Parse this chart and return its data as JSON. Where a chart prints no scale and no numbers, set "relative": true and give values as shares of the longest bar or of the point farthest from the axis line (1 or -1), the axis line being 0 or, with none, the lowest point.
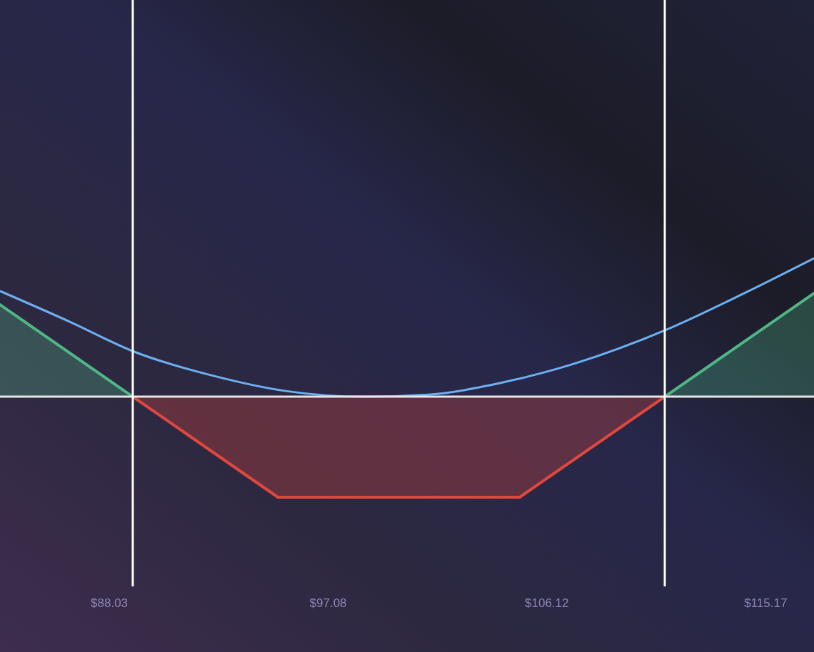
{
  "chart_data": {
    "type": "area",
    "relative": true,
    "xlim": [
      83.51,
      117.17
    ],
    "xticks": [
      {
        "value": 88.03,
        "label": "$88.03"
      },
      {
        "value": 97.08,
        "label": "$97.08"
      },
      {
        "value": 106.12,
        "label": "$106.12"
      },
      {
        "value": 115.17,
        "label": "$115.17"
      }
    ],
    "series": [
      {
        "color": "#4fb783",
        "x": [
          83.51,
          89,
          95,
          105,
          111,
          117.17
        ],
        "values": [
          0.665,
          0,
          null,
          null,
          0,
          0.747
        ]
      },
      {
        "color": "#e0483e",
        "x": [
          89,
          95,
          105,
          111
        ],
        "values": [
          0,
          -0.726,
          -0.726,
          0
        ]
      },
      {
        "type": "line",
        "color": "#6cb0f2",
        "x": [
          83.51,
          86.46,
          89,
          92.37,
          95.32,
          98.57,
          101.22,
          104.18,
          107.13,
          111,
          114.22,
          117.17
        ],
        "values": [
          0.763,
          0.536,
          0.329,
          0.149,
          0.041,
          0,
          0.015,
          0.098,
          0.232,
          0.479,
          0.742,
          1
        ]
      }
    ],
    "ref_lines": [
      {
        "axis": "x",
        "value": 89,
        "color": "#ffffff"
      },
      {
        "axis": "x",
        "value": 111,
        "color": "#ffffff"
      }
    ]
  }
}
